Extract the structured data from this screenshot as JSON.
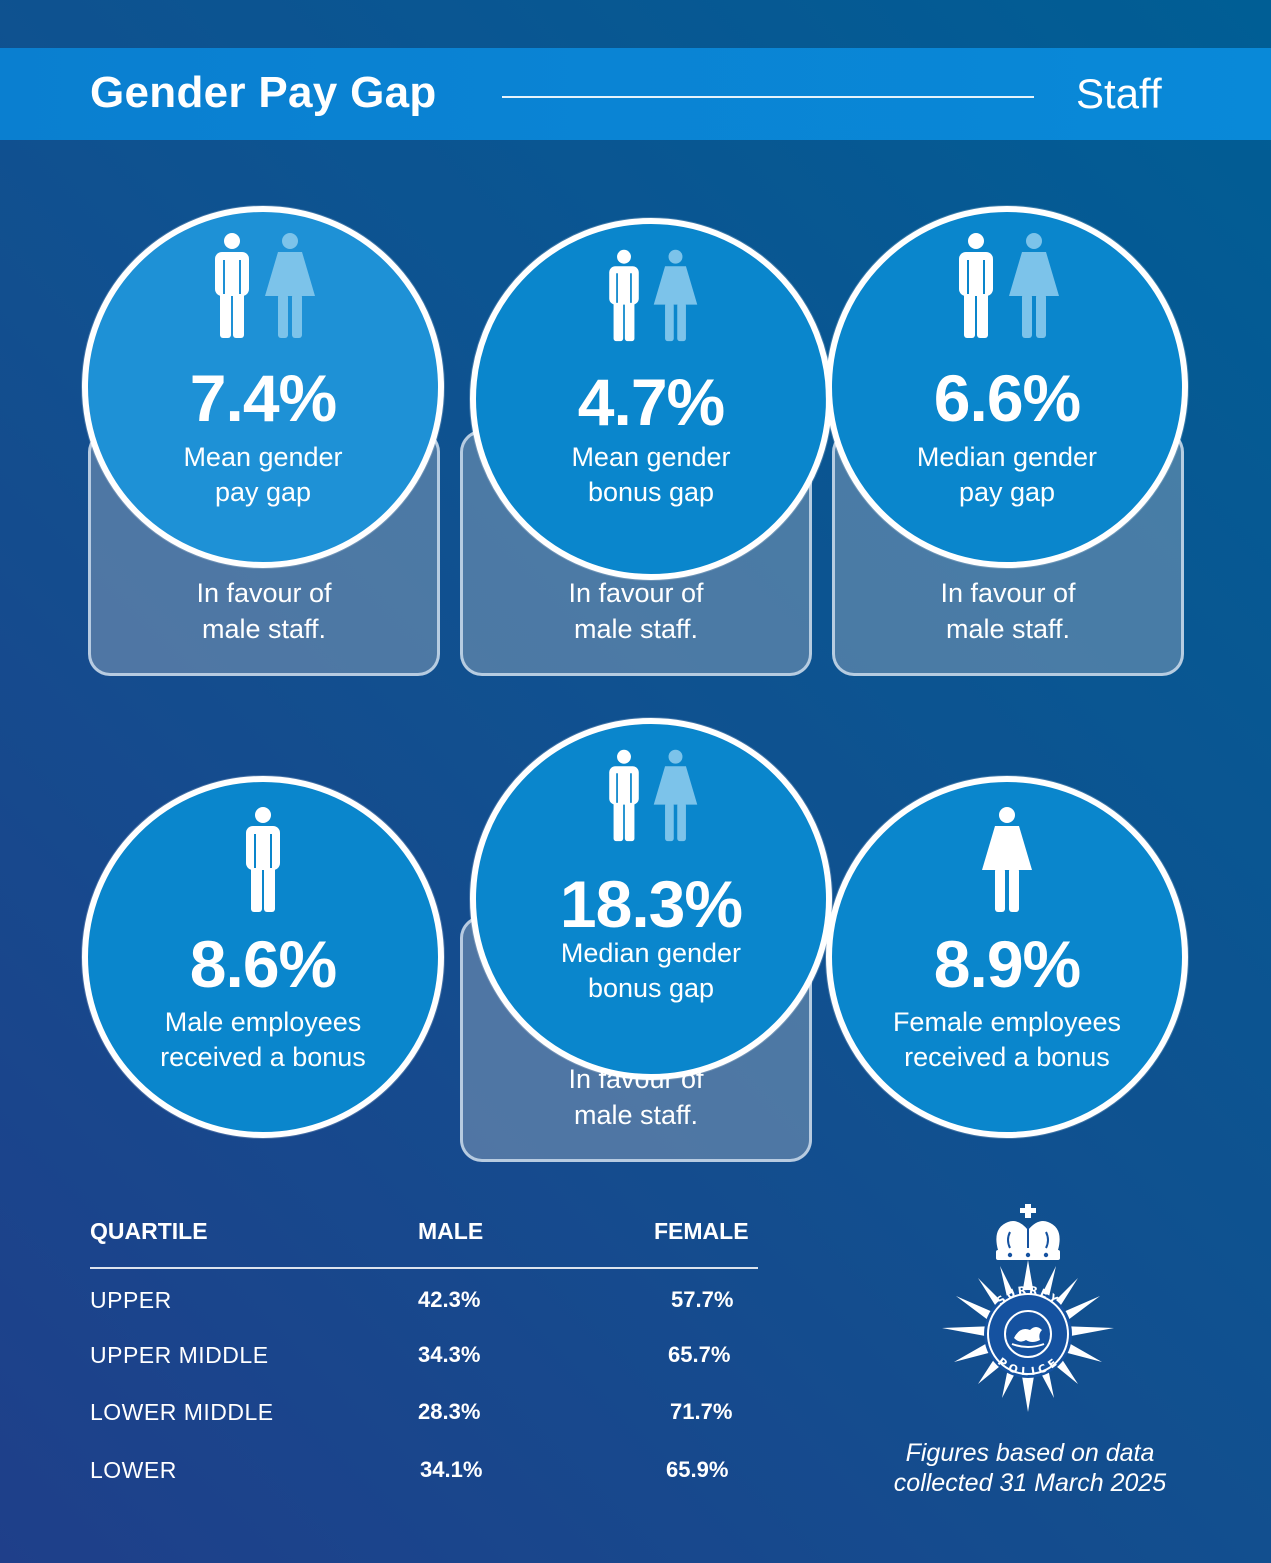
{
  "header": {
    "title": "Gender Pay Gap",
    "subtitle": "Staff"
  },
  "stats": [
    {
      "value": "7.4%",
      "label_line1": "Mean gender",
      "label_line2": "pay gap",
      "note_line1": "In favour of",
      "note_line2": "male staff.",
      "icons": "man-and-woman"
    },
    {
      "value": "4.7%",
      "label_line1": "Mean gender",
      "label_line2": "bonus gap",
      "note_line1": "In favour of",
      "note_line2": "male staff.",
      "icons": "man-and-woman"
    },
    {
      "value": "6.6%",
      "label_line1": "Median gender",
      "label_line2": "pay gap",
      "note_line1": "In favour of",
      "note_line2": "male staff.",
      "icons": "man-and-woman"
    },
    {
      "value": "8.6%",
      "label_line1": "Male employees",
      "label_line2": "received a bonus",
      "icons": "man"
    },
    {
      "value": "18.3%",
      "label_line1": "Median gender",
      "label_line2": "bonus gap",
      "note_line1": "In favour of",
      "note_line2": "male staff.",
      "icons": "man-and-woman"
    },
    {
      "value": "8.9%",
      "label_line1": "Female employees",
      "label_line2": "received a bonus",
      "icons": "woman"
    }
  ],
  "quartiles": {
    "headers": [
      "QUARTILE",
      "MALE",
      "FEMALE"
    ],
    "rows": [
      {
        "name": "UPPER",
        "male": "42.3%",
        "female": "57.7%"
      },
      {
        "name": "UPPER MIDDLE",
        "male": "34.3%",
        "female": "65.7%"
      },
      {
        "name": "LOWER MIDDLE",
        "male": "28.3%",
        "female": "71.7%"
      },
      {
        "name": "LOWER",
        "male": "34.1%",
        "female": "65.9%"
      }
    ]
  },
  "badge": {
    "top_text": "SURREY",
    "bottom_text": "POLICE"
  },
  "footnote": {
    "line1": "Figures based on data",
    "line2": "collected 31 March 2025"
  },
  "colors": {
    "background": "#1a4a8c",
    "header_band": "#0a85d4",
    "circle": "#0a86cc",
    "circle_highlight": "#1e91d6",
    "woman_icon": "#7cc3ea",
    "man_icon": "#ffffff"
  }
}
